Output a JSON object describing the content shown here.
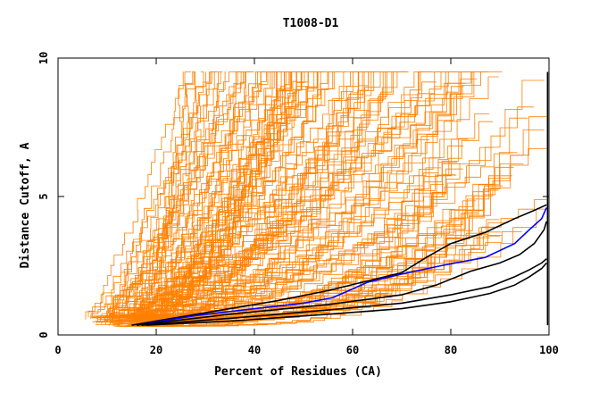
{
  "chart_data": {
    "type": "line",
    "title": "T1008-D1",
    "xlabel": "Percent of Residues (CA)",
    "ylabel": "Distance Cutoff, A",
    "xlim": [
      0,
      100
    ],
    "ylim": [
      0,
      10
    ],
    "xticks": [
      0,
      20,
      40,
      60,
      80,
      100
    ],
    "xtick_labels": [
      "0",
      "20",
      "40",
      "60",
      "80",
      "100"
    ],
    "yticks": [
      0,
      5,
      10
    ],
    "ytick_labels": [
      "0",
      "5",
      "10"
    ],
    "grid": false,
    "colors": {
      "background_models": "#ff8000",
      "highlight_black": "#000000",
      "highlight_blue": "#0000ff"
    },
    "background_model_count": 150,
    "highlight_series": [
      {
        "name": "black-top",
        "color": "#000000",
        "x": [
          15,
          30,
          45,
          55,
          63,
          70,
          75,
          80,
          87,
          93,
          97,
          99.5
        ],
        "y": [
          0.35,
          0.8,
          1.25,
          1.6,
          1.95,
          2.25,
          2.8,
          3.3,
          3.7,
          4.2,
          4.5,
          4.7
        ]
      },
      {
        "name": "blue-model",
        "color": "#0000ff",
        "x": [
          16,
          28,
          40,
          50,
          56,
          63,
          70,
          78,
          87,
          93,
          96,
          98.5,
          99.5
        ],
        "y": [
          0.35,
          0.7,
          0.95,
          1.15,
          1.35,
          1.9,
          2.2,
          2.5,
          2.8,
          3.3,
          3.8,
          4.2,
          4.6
        ]
      },
      {
        "name": "black-mid",
        "color": "#000000",
        "x": [
          16,
          35,
          55,
          70,
          77,
          84,
          90,
          94,
          97,
          99,
          99.5
        ],
        "y": [
          0.35,
          0.75,
          1.1,
          1.45,
          1.8,
          2.3,
          2.6,
          2.9,
          3.3,
          3.8,
          4.1
        ]
      },
      {
        "name": "black-low-1",
        "color": "#000000",
        "x": [
          17,
          35,
          55,
          70,
          80,
          88,
          93,
          96,
          98.5,
          99.5
        ],
        "y": [
          0.35,
          0.6,
          0.9,
          1.15,
          1.45,
          1.75,
          2.1,
          2.35,
          2.6,
          2.75
        ]
      },
      {
        "name": "black-low-2",
        "color": "#000000",
        "x": [
          18,
          35,
          55,
          70,
          80,
          88,
          93,
          96,
          98.5,
          99.5
        ],
        "y": [
          0.35,
          0.5,
          0.75,
          0.95,
          1.2,
          1.5,
          1.8,
          2.1,
          2.4,
          2.6
        ]
      },
      {
        "name": "black-vertical",
        "color": "#000000",
        "x": [
          99.7,
          99.7
        ],
        "y": [
          0.35,
          9.5
        ]
      }
    ]
  }
}
